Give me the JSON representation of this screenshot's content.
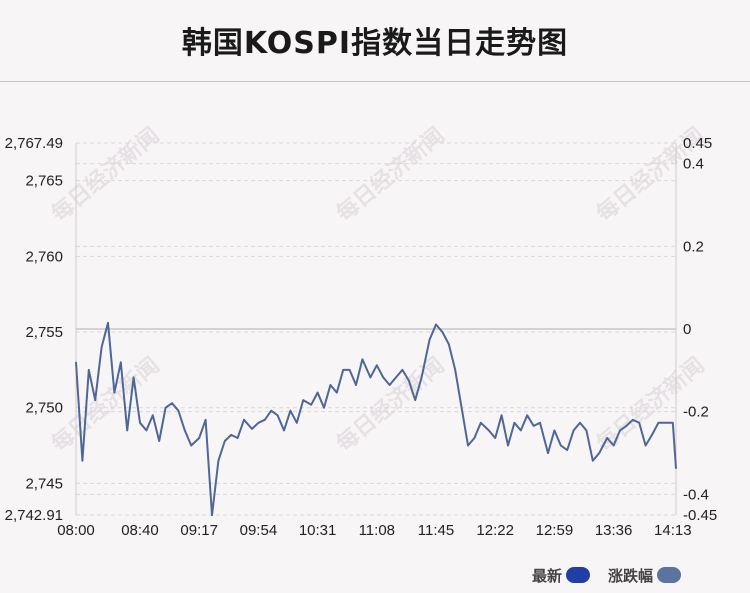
{
  "title": "韩国KOSPI指数当日走势图",
  "watermark": "每日经济新闻",
  "colors": {
    "line": "#4e6796",
    "latest_swatch": "#1f3fa6",
    "change_swatch": "#5c739f",
    "grid": "#dcd7da",
    "zero_line": "#c9c5c8"
  },
  "legend": [
    {
      "label": "最新",
      "color": "#1f3fa6"
    },
    {
      "label": "涨跌幅",
      "color": "#5c739f"
    }
  ],
  "chart_data": {
    "type": "line",
    "title": "韩国KOSPI指数当日走势图",
    "xlabel": "",
    "ylabel": "",
    "x_ticks": [
      "08:00",
      "08:40",
      "09:17",
      "09:54",
      "10:31",
      "11:08",
      "11:45",
      "12:22",
      "12:59",
      "13:36",
      "14:13"
    ],
    "x_range": [
      "08:00",
      "14:15"
    ],
    "y_left_ticks": [
      "2,767.49",
      "2,765",
      "2,760",
      "2,755",
      "2,750",
      "2,745",
      "2,742.91"
    ],
    "y_right_ticks": [
      "0.45",
      "0.4",
      "0.2",
      "0",
      "-0.2",
      "-0.4",
      "-0.45"
    ],
    "ylim_left": [
      2742.91,
      2767.49
    ],
    "ylim_right": [
      -0.45,
      0.45
    ],
    "previous_close": 2755.2,
    "grid": true,
    "legend_position": "bottom-right",
    "series": [
      {
        "name": "最新",
        "x": [
          "08:00",
          "08:04",
          "08:08",
          "08:12",
          "08:16",
          "08:20",
          "08:24",
          "08:28",
          "08:32",
          "08:36",
          "08:40",
          "08:44",
          "08:48",
          "08:52",
          "08:56",
          "09:00",
          "09:04",
          "09:08",
          "09:12",
          "09:17",
          "09:21",
          "09:25",
          "09:29",
          "09:33",
          "09:37",
          "09:41",
          "09:45",
          "09:50",
          "09:54",
          "09:58",
          "10:02",
          "10:06",
          "10:10",
          "10:14",
          "10:18",
          "10:22",
          "10:27",
          "10:31",
          "10:35",
          "10:39",
          "10:43",
          "10:47",
          "10:51",
          "10:55",
          "10:59",
          "11:04",
          "11:08",
          "11:12",
          "11:16",
          "11:20",
          "11:24",
          "11:28",
          "11:32",
          "11:36",
          "11:41",
          "11:45",
          "11:49",
          "11:53",
          "11:57",
          "12:01",
          "12:05",
          "12:09",
          "12:13",
          "12:18",
          "12:22",
          "12:26",
          "12:30",
          "12:34",
          "12:38",
          "12:42",
          "12:46",
          "12:50",
          "12:55",
          "12:59",
          "13:03",
          "13:07",
          "13:11",
          "13:15",
          "13:19",
          "13:23",
          "13:27",
          "13:32",
          "13:36",
          "13:40",
          "13:44",
          "13:48",
          "13:52",
          "13:56",
          "14:00",
          "14:04",
          "14:09",
          "14:13",
          "14:15"
        ],
        "values": [
          2753.0,
          2746.5,
          2752.5,
          2750.5,
          2754.0,
          2755.6,
          2751.0,
          2753.0,
          2748.5,
          2752.0,
          2749.0,
          2748.5,
          2749.5,
          2747.8,
          2750.0,
          2750.3,
          2749.8,
          2748.5,
          2747.5,
          2748.0,
          2749.2,
          2742.9,
          2746.5,
          2747.8,
          2748.2,
          2748.0,
          2749.2,
          2748.6,
          2749.0,
          2749.2,
          2749.8,
          2749.5,
          2748.5,
          2749.8,
          2749.0,
          2750.5,
          2750.2,
          2751.0,
          2750.0,
          2751.5,
          2751.0,
          2752.5,
          2752.5,
          2751.5,
          2753.2,
          2752.0,
          2752.8,
          2752.0,
          2751.5,
          2752.0,
          2752.5,
          2751.8,
          2750.5,
          2752.0,
          2754.5,
          2755.5,
          2755.0,
          2754.2,
          2752.5,
          2750.0,
          2747.5,
          2748.0,
          2749.0,
          2748.5,
          2748.0,
          2749.5,
          2747.5,
          2749.0,
          2748.5,
          2749.5,
          2748.8,
          2749.0,
          2747.0,
          2748.5,
          2747.5,
          2747.2,
          2748.5,
          2749.0,
          2748.5,
          2746.5,
          2747.0,
          2748.0,
          2747.5,
          2748.5,
          2748.8,
          2749.2,
          2749.0,
          2747.5,
          2748.2,
          2749.0,
          2749.0,
          2749.0,
          2746.0
        ]
      },
      {
        "name": "涨跌幅",
        "values": []
      }
    ]
  }
}
